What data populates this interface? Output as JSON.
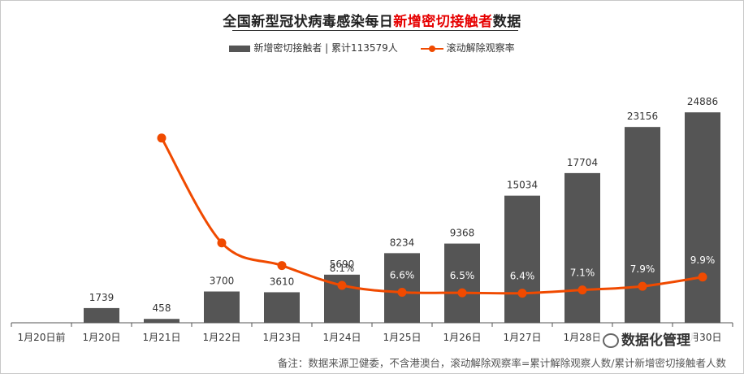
{
  "title": {
    "prefix": "全国新型冠状病毒感染每日",
    "highlight": "新增密切接触者",
    "suffix": "数据"
  },
  "legend": {
    "bar_label": "新增密切接触者 | 累计113579人",
    "line_label": "滚动解除观察率"
  },
  "footnote": "备注：数据来源卫健委，不含港澳台，滚动解除观察率=累计解除观察人数/累计新增密切接触者人数",
  "watermark": "数据化管理",
  "colors": {
    "bar": "#555555",
    "line": "#f04a00",
    "title_highlight": "#e60000"
  },
  "chart_data": {
    "type": "bar",
    "categories": [
      "1月20日前",
      "1月20日",
      "1月21日",
      "1月22日",
      "1月23日",
      "1月24日",
      "1月25日",
      "1月26日",
      "1月27日",
      "1月28日",
      "1月29日",
      "1月30日"
    ],
    "series": [
      {
        "name": "新增密切接触者",
        "type": "bar",
        "values": [
          null,
          1739,
          458,
          3700,
          3610,
          5690,
          8234,
          9368,
          15034,
          17704,
          23156,
          24886
        ],
        "labels": [
          "",
          "1739",
          "458",
          "3700",
          "3610",
          "5690",
          "8234",
          "9368",
          "15034",
          "17704",
          "23156",
          "24886"
        ]
      },
      {
        "name": "滚动解除观察率",
        "type": "line",
        "values": [
          null,
          null,
          40.0,
          17.3,
          12.4,
          8.1,
          6.6,
          6.5,
          6.4,
          7.1,
          7.9,
          9.9
        ],
        "labels": [
          "",
          "",
          "",
          "",
          "",
          "8.1%",
          "6.6%",
          "6.5%",
          "6.4%",
          "7.1%",
          "7.9%",
          "9.9%"
        ]
      }
    ],
    "ylim": [
      0,
      25000
    ],
    "y2lim": [
      0,
      50
    ],
    "legend": "top-center",
    "grid": false
  }
}
